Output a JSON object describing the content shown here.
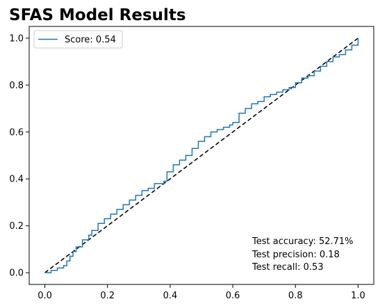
{
  "chart_data": {
    "type": "line",
    "title": "SFAS Model Results",
    "xlabel": "",
    "ylabel": "",
    "xlim": [
      -0.05,
      1.05
    ],
    "ylim": [
      -0.05,
      1.05
    ],
    "xticks": [
      "0.0",
      "0.2",
      "0.4",
      "0.6",
      "0.8",
      "1.0"
    ],
    "yticks": [
      "0.0",
      "0.2",
      "0.4",
      "0.6",
      "0.8",
      "1.0"
    ],
    "grid": false,
    "legend_position": "top-left",
    "series": [
      {
        "name": "Score: 0.54",
        "color": "#1f77b4",
        "style": "solid-step",
        "x": [
          0.0,
          0.02,
          0.04,
          0.06,
          0.07,
          0.08,
          0.09,
          0.1,
          0.12,
          0.14,
          0.15,
          0.17,
          0.19,
          0.21,
          0.23,
          0.25,
          0.27,
          0.29,
          0.31,
          0.33,
          0.35,
          0.37,
          0.38,
          0.39,
          0.41,
          0.43,
          0.45,
          0.47,
          0.49,
          0.51,
          0.53,
          0.55,
          0.57,
          0.59,
          0.6,
          0.62,
          0.64,
          0.66,
          0.68,
          0.7,
          0.72,
          0.74,
          0.76,
          0.78,
          0.8,
          0.82,
          0.84,
          0.86,
          0.88,
          0.9,
          0.92,
          0.94,
          0.96,
          0.98,
          1.0
        ],
        "y": [
          0.0,
          0.01,
          0.02,
          0.03,
          0.05,
          0.07,
          0.09,
          0.11,
          0.14,
          0.16,
          0.18,
          0.21,
          0.23,
          0.25,
          0.27,
          0.29,
          0.31,
          0.33,
          0.35,
          0.36,
          0.38,
          0.38,
          0.39,
          0.43,
          0.46,
          0.48,
          0.5,
          0.53,
          0.56,
          0.58,
          0.6,
          0.61,
          0.62,
          0.63,
          0.64,
          0.68,
          0.7,
          0.72,
          0.73,
          0.75,
          0.76,
          0.77,
          0.78,
          0.79,
          0.81,
          0.83,
          0.84,
          0.86,
          0.88,
          0.9,
          0.92,
          0.93,
          0.95,
          0.97,
          1.0
        ]
      }
    ],
    "reference_line": {
      "x": [
        0.0,
        1.0
      ],
      "y": [
        0.0,
        1.0
      ],
      "color": "#000000",
      "style": "dashed"
    },
    "annotations": [
      "Test accuracy: 52.71%",
      "Test precision: 0.18",
      "Test recall: 0.53"
    ]
  }
}
